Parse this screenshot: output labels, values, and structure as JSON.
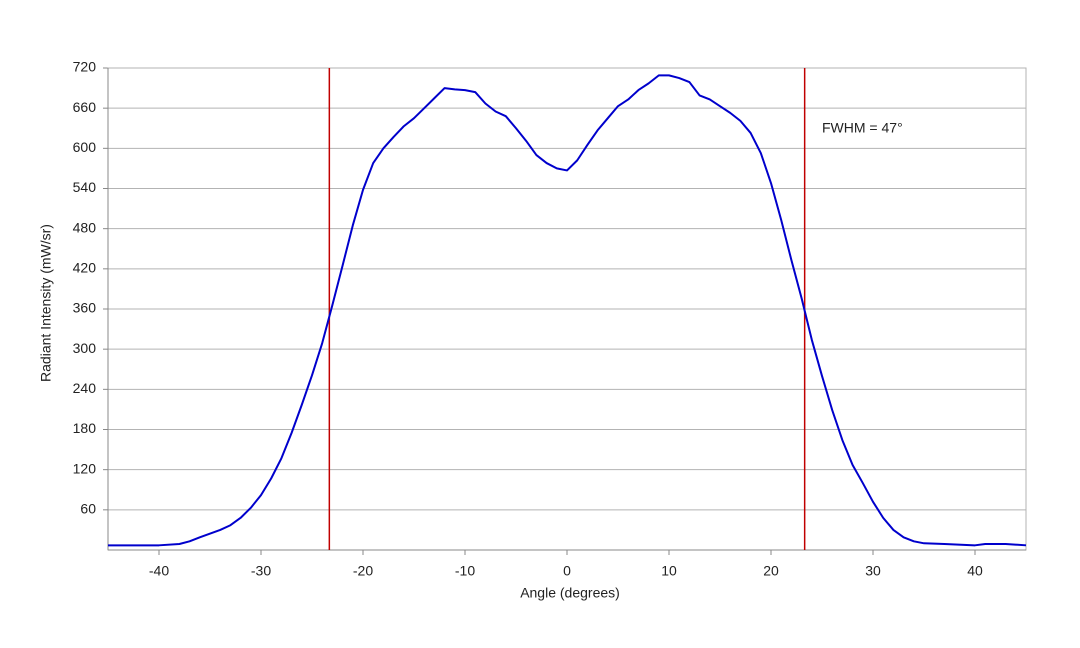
{
  "chart_data": {
    "type": "line",
    "x_label": "Angle (degrees)",
    "y_label": "Radiant Intensity (mW/sr)",
    "x": [
      -45,
      -42,
      -40,
      -38,
      -37,
      -36,
      -34,
      -33,
      -32,
      -31,
      -30,
      -29,
      -28,
      -27,
      -26,
      -25,
      -24,
      -23,
      -22,
      -21,
      -20,
      -19,
      -18,
      -17,
      -16,
      -15,
      -14,
      -13,
      -12,
      -11,
      -10,
      -9,
      -8,
      -7,
      -6,
      -5,
      -4,
      -3,
      -2,
      -1,
      0,
      1,
      2,
      3,
      4,
      5,
      6,
      7,
      8,
      9,
      10,
      11,
      12,
      13,
      14,
      15,
      16,
      17,
      18,
      19,
      20,
      21,
      22,
      23,
      24,
      25,
      26,
      27,
      28,
      29,
      30,
      31,
      32,
      33,
      34,
      35,
      37,
      40,
      41,
      43,
      45
    ],
    "series": [
      {
        "color": "#0000cc",
        "values": [
          7,
          7,
          7,
          9,
          13,
          19,
          30,
          37,
          48,
          63,
          82,
          107,
          137,
          175,
          217,
          261,
          309,
          366,
          425,
          485,
          538,
          578,
          600,
          617,
          633,
          645,
          660,
          675,
          690,
          688,
          687,
          684,
          667,
          655,
          648,
          630,
          611,
          590,
          578,
          570,
          567,
          582,
          605,
          627,
          645,
          663,
          673,
          687,
          697,
          709,
          709,
          705,
          699,
          679,
          673,
          663,
          653,
          641,
          623,
          593,
          548,
          493,
          433,
          376,
          314,
          260,
          209,
          164,
          127,
          100,
          72,
          48,
          30,
          19,
          13,
          10,
          9,
          7,
          9,
          9,
          7
        ]
      }
    ],
    "xlim": [
      -45,
      45
    ],
    "xticks": [
      -40,
      -30,
      -20,
      -10,
      0,
      10,
      20,
      30,
      40
    ],
    "ylim": [
      0,
      720
    ],
    "yticks": [
      60,
      120,
      180,
      240,
      300,
      360,
      420,
      480,
      540,
      600,
      660,
      720
    ],
    "grid": true,
    "vlines": {
      "color": "#c00000",
      "values": [
        -23.3,
        23.3
      ]
    },
    "annotation": "FWHM = 47°"
  }
}
